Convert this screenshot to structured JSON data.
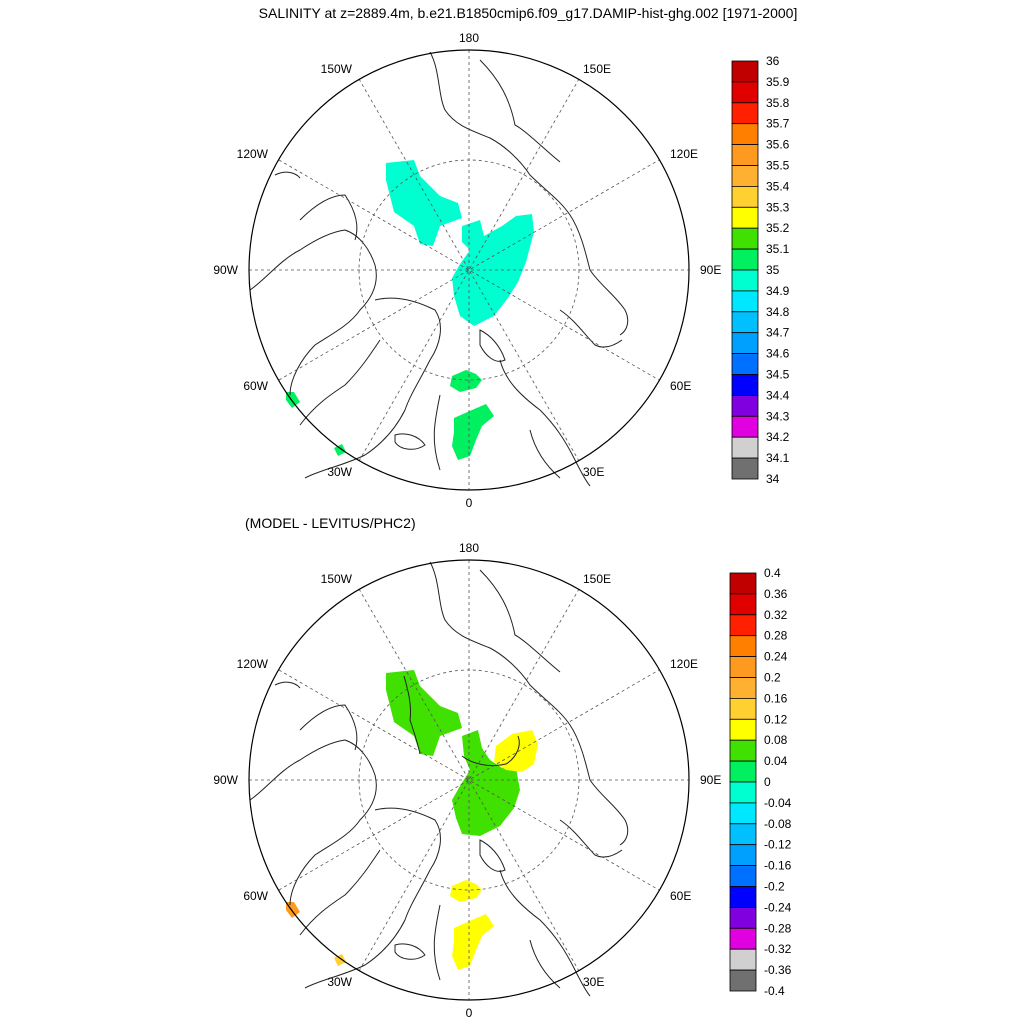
{
  "title": "SALINITY at z=2889.4m, b.e21.B1850cmip6.f09_g17.DAMIP-hist-ghg.002 [1971-2000]",
  "subtitle": "(MODEL - LEVITUS/PHC2)",
  "longitude_labels": {
    "top": "180",
    "bottom": "0",
    "left": "90W",
    "right": "90E",
    "upper_left_1": "150W",
    "upper_left_2": "120W",
    "lower_left_1": "60W",
    "lower_left_2": "30W",
    "upper_right_1": "150E",
    "upper_right_2": "120E",
    "lower_right_1": "60E",
    "lower_right_2": "30E"
  },
  "colorbar_top": {
    "labels": [
      "36",
      "35.9",
      "35.8",
      "35.7",
      "35.6",
      "35.5",
      "35.4",
      "35.3",
      "35.2",
      "35.1",
      "35",
      "34.9",
      "34.8",
      "34.7",
      "34.6",
      "34.5",
      "34.4",
      "34.3",
      "34.2",
      "34.1",
      "34"
    ],
    "colors": [
      "#c00000",
      "#e00000",
      "#ff2000",
      "#ff8000",
      "#ff9a20",
      "#ffb030",
      "#ffd030",
      "#ffff00",
      "#40e000",
      "#00f060",
      "#00ffd0",
      "#00e8ff",
      "#00c0ff",
      "#00a0ff",
      "#0070ff",
      "#0000ff",
      "#8000e0",
      "#e000e0",
      "#d0d0d0",
      "#707070"
    ]
  },
  "colorbar_bottom": {
    "labels": [
      "0.4",
      "0.36",
      "0.32",
      "0.28",
      "0.24",
      "0.2",
      "0.16",
      "0.12",
      "0.08",
      "0.04",
      "0",
      "-0.04",
      "-0.08",
      "-0.12",
      "-0.16",
      "-0.2",
      "-0.24",
      "-0.28",
      "-0.32",
      "-0.36",
      "-0.4"
    ],
    "colors": [
      "#c00000",
      "#e00000",
      "#ff2000",
      "#ff8000",
      "#ff9a20",
      "#ffb030",
      "#ffd030",
      "#ffff00",
      "#40e000",
      "#00f060",
      "#00ffd0",
      "#00e8ff",
      "#00c0ff",
      "#00a0ff",
      "#0070ff",
      "#0000ff",
      "#8000e0",
      "#e000e0",
      "#d0d0d0",
      "#707070"
    ]
  },
  "panels": [
    {
      "name": "salinity",
      "fields": [
        {
          "region": "canada-basin",
          "value": 34.95,
          "color": "#00ffd0"
        },
        {
          "region": "eurasian-basin",
          "value": 34.95,
          "color": "#00ffd0"
        },
        {
          "region": "fram-strait",
          "value": 35.05,
          "color": "#00f060"
        },
        {
          "region": "norwegian-sea",
          "value": 35.05,
          "color": "#00f060"
        },
        {
          "region": "labrador-edge",
          "value": 35.05,
          "color": "#00f060"
        },
        {
          "region": "atlantic-edge",
          "value": 35.05,
          "color": "#00f060"
        }
      ]
    },
    {
      "name": "difference",
      "fields": [
        {
          "region": "canada-basin",
          "value": 0.06,
          "color": "#40e000"
        },
        {
          "region": "eurasian-basin",
          "value": 0.06,
          "color": "#40e000"
        },
        {
          "region": "eurasian-basin-east",
          "value": 0.1,
          "color": "#ffff00"
        },
        {
          "region": "fram-strait",
          "value": 0.1,
          "color": "#ffff00"
        },
        {
          "region": "norwegian-sea",
          "value": 0.1,
          "color": "#ffff00"
        },
        {
          "region": "labrador-edge",
          "value": 0.22,
          "color": "#ff9a20"
        },
        {
          "region": "atlantic-edge",
          "value": 0.14,
          "color": "#ffd030"
        }
      ]
    }
  ]
}
